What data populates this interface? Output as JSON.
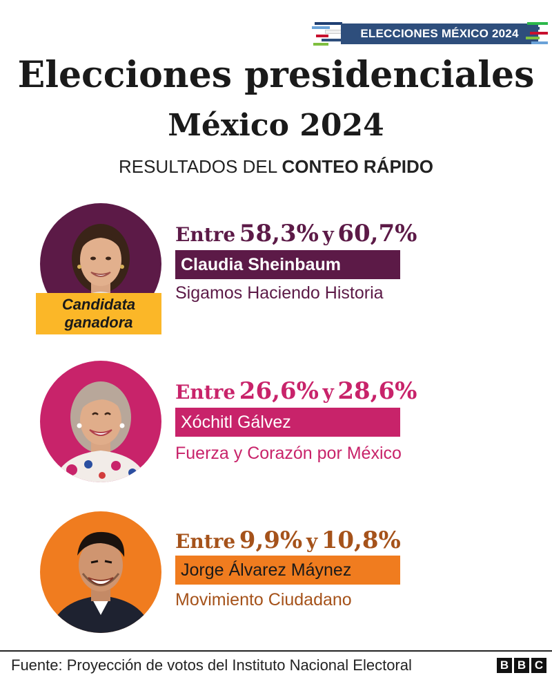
{
  "badge": {
    "label": "ELECCIONES MÉXICO 2024"
  },
  "header": {
    "title": "Elecciones presidenciales",
    "subtitle": "México 2024",
    "results_prefix": "RESULTADOS DEL",
    "results_bold": "CONTEO RÁPIDO"
  },
  "colors": {
    "sheinbaum": "#5c1a47",
    "galvez": "#c8236a",
    "maynez": "#f07c1f",
    "maynez_text": "#a5521a",
    "winner_tag": "#fbb728",
    "badge": "#2e4e7c"
  },
  "candidates": [
    {
      "range_word": "Entre",
      "low": "58,3%",
      "conj": "y",
      "high": "60,7%",
      "name": "Claudia Sheinbaum",
      "party": "Sigamos Haciendo Historia",
      "winner_label": "Candidata ganadora"
    },
    {
      "range_word": "Entre",
      "low": "26,6%",
      "conj": "y",
      "high": "28,6%",
      "name": "Xóchitl Gálvez",
      "party": "Fuerza y Corazón por México"
    },
    {
      "range_word": "Entre",
      "low": "9,9%",
      "conj": "y",
      "high": "10,8%",
      "name": "Jorge Álvarez Máynez",
      "party": "Movimiento Ciudadano"
    }
  ],
  "footer": {
    "source": "Fuente: Proyección de votos del Instituto Nacional Electoral",
    "logo": [
      "B",
      "B",
      "C"
    ]
  }
}
